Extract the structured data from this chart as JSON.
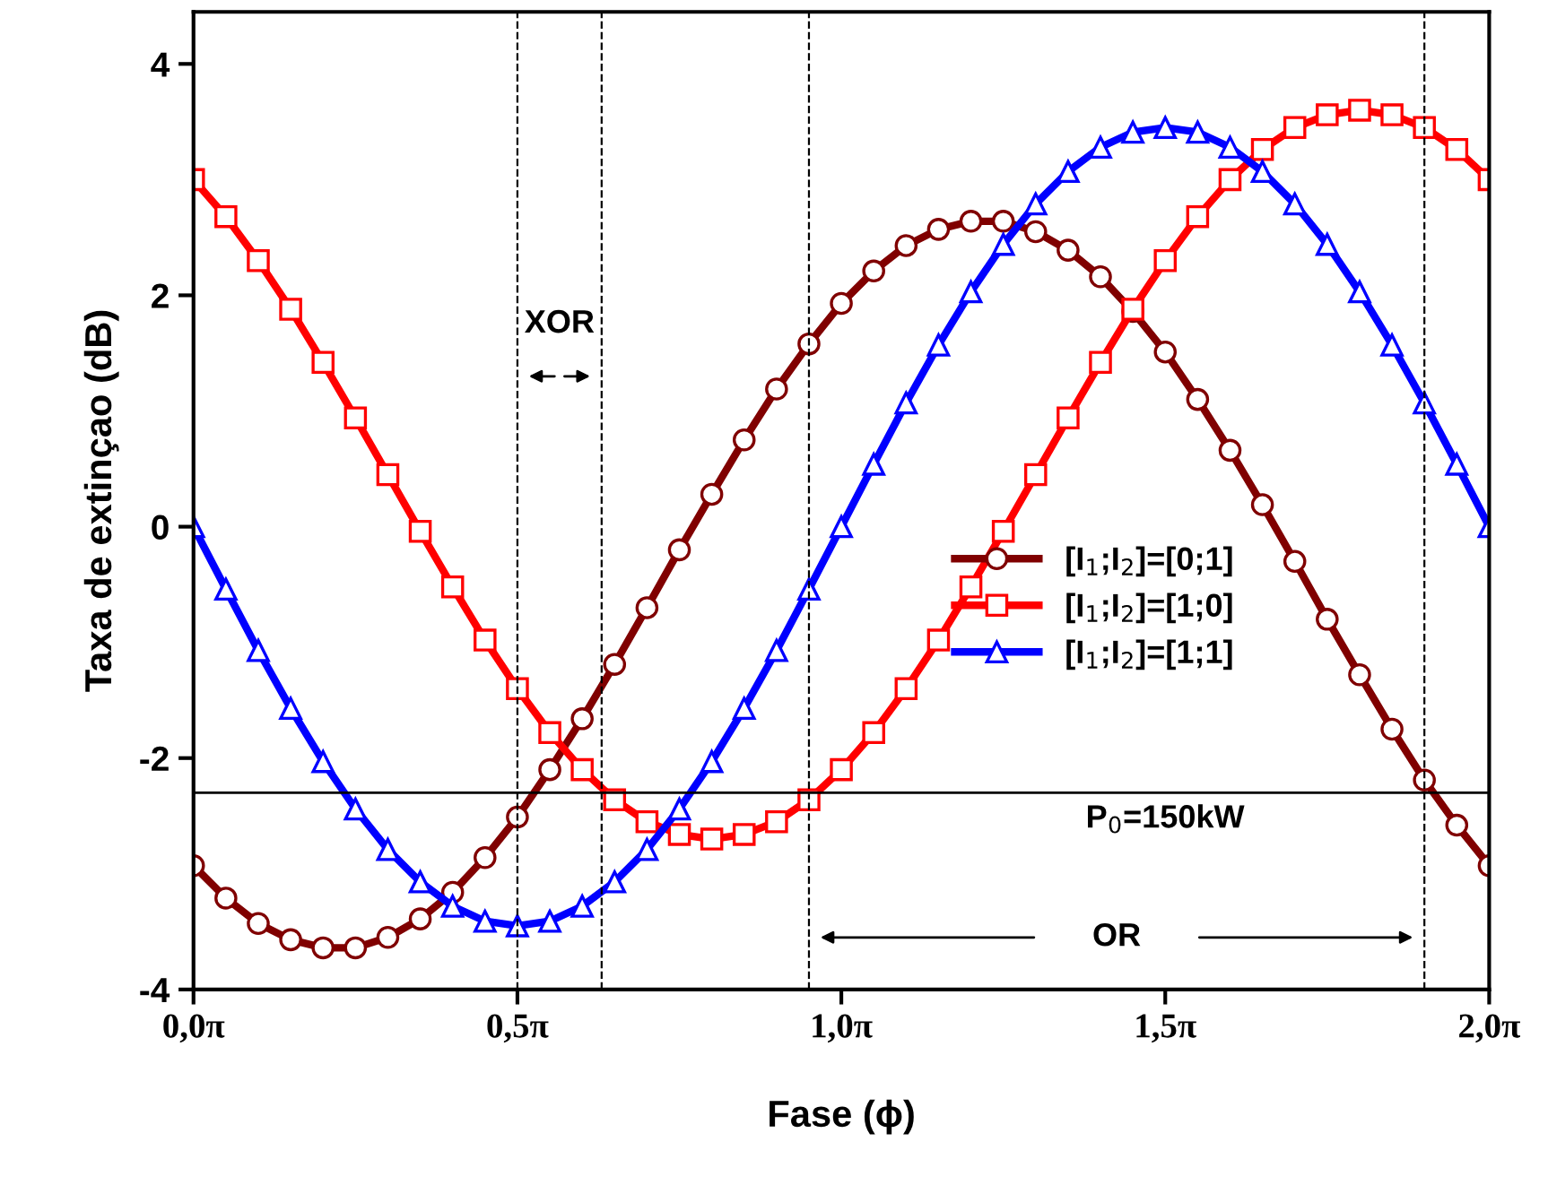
{
  "chart_data": {
    "type": "line",
    "xlabel": "Fase (ϕ)",
    "ylabel": "Taxa de extinçao (dB)",
    "x": [
      0,
      0.05,
      0.1,
      0.15,
      0.2,
      0.25,
      0.3,
      0.35,
      0.4,
      0.45,
      0.5,
      0.55,
      0.6,
      0.65,
      0.7,
      0.75,
      0.8,
      0.85,
      0.9,
      0.95,
      1.0,
      1.05,
      1.1,
      1.15,
      1.2,
      1.25,
      1.3,
      1.35,
      1.4,
      1.45,
      1.5,
      1.55,
      1.6,
      1.65,
      1.7,
      1.75,
      1.8,
      1.85,
      1.9,
      1.95,
      2.0
    ],
    "series": [
      {
        "name": "[I$_{1}$;I$_{2}$]=[0;1]",
        "color": "#800000",
        "marker": "circle",
        "values": [
          -2.93,
          -3.21,
          -3.43,
          -3.57,
          -3.64,
          -3.64,
          -3.55,
          -3.39,
          -3.16,
          -2.86,
          -2.51,
          -2.1,
          -1.66,
          -1.19,
          -0.7,
          -0.2,
          0.28,
          0.75,
          1.19,
          1.58,
          1.93,
          2.21,
          2.43,
          2.57,
          2.64,
          2.64,
          2.55,
          2.39,
          2.16,
          1.86,
          1.51,
          1.1,
          0.66,
          0.19,
          -0.3,
          -0.8,
          -1.28,
          -1.75,
          -2.19,
          -2.58,
          -2.93
        ]
      },
      {
        "name": "[I$_{1}$;I$_{2}$]=[1;0]",
        "color": "#ff0000",
        "marker": "square",
        "values": [
          3.0,
          2.68,
          2.3,
          1.88,
          1.42,
          0.94,
          0.45,
          -0.04,
          -0.52,
          -0.98,
          -1.4,
          -1.78,
          -2.1,
          -2.36,
          -2.55,
          -2.66,
          -2.7,
          -2.66,
          -2.55,
          -2.36,
          -2.1,
          -1.78,
          -1.4,
          -0.98,
          -0.52,
          -0.04,
          0.45,
          0.94,
          1.42,
          1.88,
          2.3,
          2.68,
          3.0,
          3.26,
          3.45,
          3.56,
          3.6,
          3.56,
          3.45,
          3.26,
          3.0
        ]
      },
      {
        "name": "[I$_{1}$;I$_{2}$]=[1;1]",
        "color": "#0000ff",
        "marker": "triangle",
        "values": [
          0,
          -0.54,
          -1.07,
          -1.57,
          -2.03,
          -2.44,
          -2.79,
          -3.07,
          -3.28,
          -3.41,
          -3.45,
          -3.41,
          -3.28,
          -3.07,
          -2.79,
          -2.44,
          -2.03,
          -1.57,
          -1.07,
          -0.54,
          0,
          0.54,
          1.07,
          1.57,
          2.03,
          2.44,
          2.79,
          3.07,
          3.28,
          3.41,
          3.45,
          3.41,
          3.28,
          3.07,
          2.79,
          2.44,
          2.03,
          1.57,
          1.07,
          0.54,
          0
        ]
      }
    ],
    "xlim": [
      0,
      2
    ],
    "ylim": [
      -4,
      4.45
    ],
    "xticks": [
      {
        "value": 0,
        "label": "0,0π"
      },
      {
        "value": 0.5,
        "label": "0,5π"
      },
      {
        "value": 1.0,
        "label": "1,0π"
      },
      {
        "value": 1.5,
        "label": "1,5π"
      },
      {
        "value": 2.0,
        "label": "2,0π"
      }
    ],
    "yticks": [
      -4,
      -2,
      0,
      2,
      4
    ],
    "ref_lines": [
      {
        "axis": "y",
        "value": -2.3,
        "color": "#000000",
        "line_style": "solid"
      },
      {
        "axis": "x",
        "value": 0.5,
        "color": "#000000",
        "line_style": "dashed"
      },
      {
        "axis": "x",
        "value": 0.63,
        "color": "#000000",
        "line_style": "dashed"
      },
      {
        "axis": "x",
        "value": 0.95,
        "color": "#000000",
        "line_style": "dashed"
      },
      {
        "axis": "x",
        "value": 1.9,
        "color": "#000000",
        "line_style": "dashed"
      }
    ],
    "annotations": [
      "XOR",
      "OR",
      {
        "text": "P$_{0}$=150kW",
        "x": 1.5,
        "y": -2.3
      }
    ],
    "legend": "right",
    "line_style": "solid"
  }
}
